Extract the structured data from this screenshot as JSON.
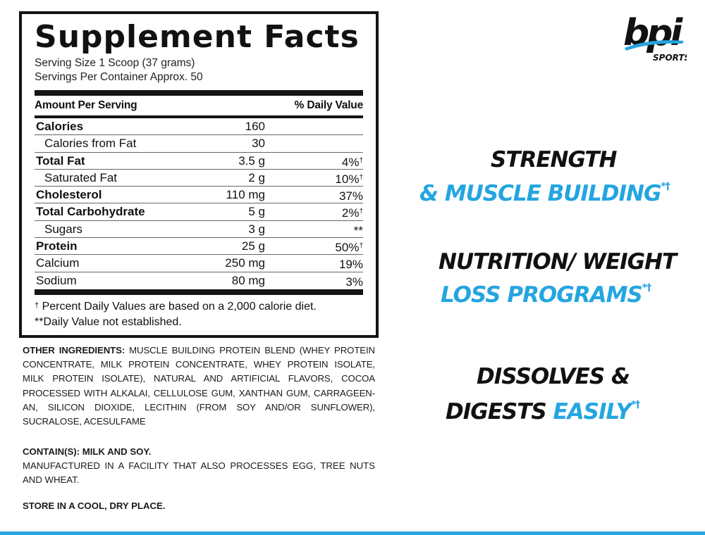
{
  "facts": {
    "title": "Supplement Facts",
    "serving_size": "Serving Size 1 Scoop (37 grams)",
    "servings_per_container": "Servings Per Container Approx. 50",
    "amount_header": "Amount Per Serving",
    "dv_header": "% Daily Value",
    "rows": [
      {
        "name": "Calories",
        "amount": "160",
        "dv": "",
        "dv_mark": ""
      },
      {
        "name": "Calories from Fat",
        "amount": "30",
        "dv": "",
        "dv_mark": ""
      },
      {
        "name": "Total Fat",
        "amount": "3.5 g",
        "dv": "4%",
        "dv_mark": "†"
      },
      {
        "name": "Saturated Fat",
        "amount": "2 g",
        "dv": "10%",
        "dv_mark": "†"
      },
      {
        "name": "Cholesterol",
        "amount": "110 mg",
        "dv": "37%",
        "dv_mark": ""
      },
      {
        "name": "Total Carbohydrate",
        "amount": "5 g",
        "dv": "2%",
        "dv_mark": "†"
      },
      {
        "name": "Sugars",
        "amount": "3 g",
        "dv": "**",
        "dv_mark": ""
      },
      {
        "name": "Protein",
        "amount": "25 g",
        "dv": "50%",
        "dv_mark": "†"
      },
      {
        "name": "Calcium",
        "amount": "250 mg",
        "dv": "19%",
        "dv_mark": ""
      },
      {
        "name": "Sodium",
        "amount": "80 mg",
        "dv": "3%",
        "dv_mark": ""
      }
    ],
    "footnote_dagger": "†",
    "footnote_1": "Percent Daily Values are based on a 2,000 calorie diet.",
    "footnote_2": "**Daily Value not established."
  },
  "ingredients": {
    "label": "OTHER INGREDIENTS:",
    "text": "MUSCLE BUILDING PROTEIN BLEND (WHEY PROTEIN CONCENTRATE, MILK PROTEIN CONCENTRATE, WHEY PROTEIN ISOLATE, MILK PROTEIN ISOLATE), NATURAL AND ARTIFICIAL FLAVORS, COCOA PROCESSED WITH ALKALAI, CELLULOSE GUM, XANTHAN GUM, CARRAGEEN-AN, SILICON DIOXIDE, LECITHIN (FROM SOY AND/OR SUNFLOWER), SUCRALOSE, ACESULFAME"
  },
  "contains": {
    "label": "CONTAIN(S): MILK AND SOY.",
    "text": "MANUFACTURED IN A FACILITY THAT ALSO PROCESSES EGG, TREE NUTS AND WHEAT."
  },
  "storage": "STORE IN A COOL, DRY PLACE.",
  "logo": {
    "brand": "bpi",
    "sub": "SPORTS"
  },
  "claims": [
    {
      "line1": "STRENGTH",
      "line2": "& MUSCLE BUILDING",
      "mark": "*†"
    },
    {
      "line1": "NUTRITION/ WEIGHT",
      "line2": "LOSS PROGRAMS",
      "mark": "*†"
    },
    {
      "line1": "DISSOLVES &",
      "line2_black": "DIGESTS",
      "line2_blue": "EASILY",
      "mark": "*†"
    }
  ],
  "colors": {
    "accent": "#24a5e0",
    "text": "#111111"
  }
}
